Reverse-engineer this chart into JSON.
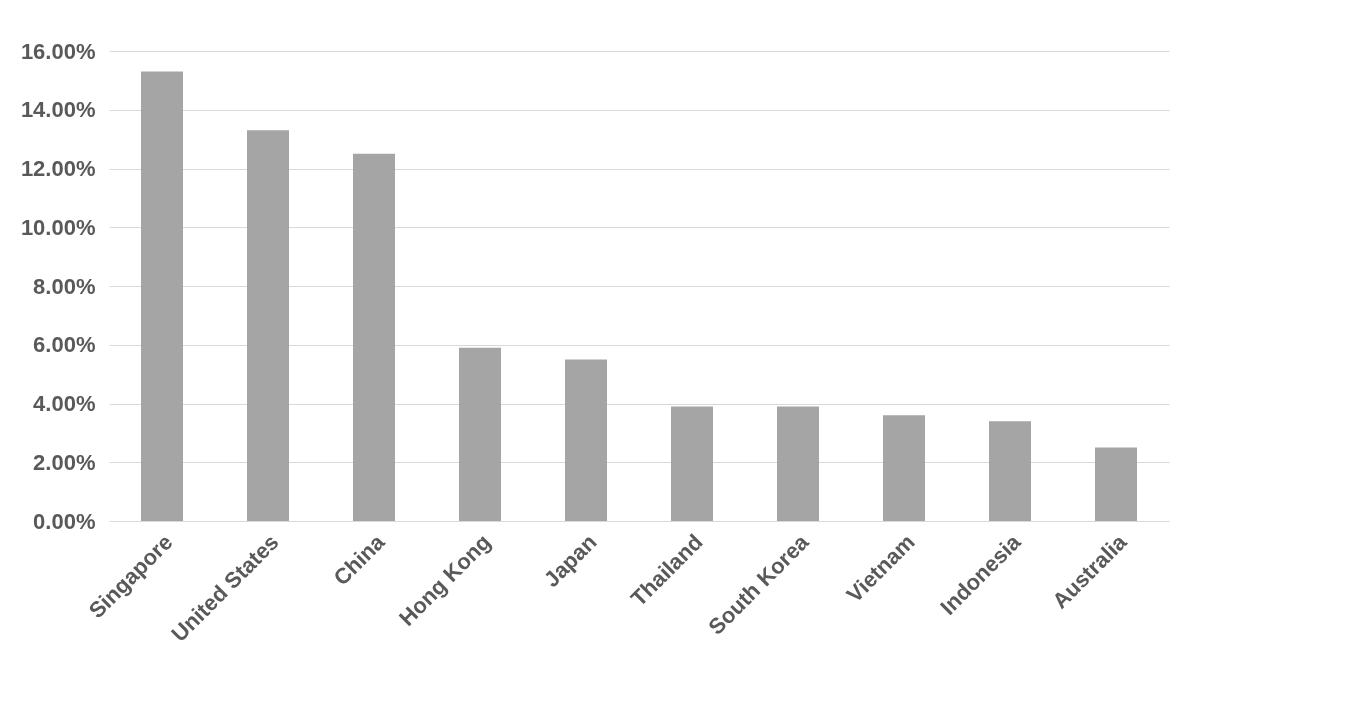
{
  "chart_data": {
    "type": "bar",
    "categories": [
      "Singapore",
      "United States",
      "China",
      "Hong Kong",
      "Japan",
      "Thailand",
      "South Korea",
      "Vietnam",
      "Indonesia",
      "Australia"
    ],
    "values": [
      15.3,
      13.3,
      12.5,
      5.9,
      5.5,
      3.9,
      3.9,
      3.6,
      3.4,
      2.5
    ],
    "color": "#a5a5a5",
    "ylim": [
      0,
      16
    ],
    "yticks": [
      {
        "value": 0,
        "label": "0.00%"
      },
      {
        "value": 2,
        "label": "2.00%"
      },
      {
        "value": 4,
        "label": "4.00%"
      },
      {
        "value": 6,
        "label": "6.00%"
      },
      {
        "value": 8,
        "label": "8.00%"
      },
      {
        "value": 10,
        "label": "10.00%"
      },
      {
        "value": 12,
        "label": "12.00%"
      },
      {
        "value": 14,
        "label": "14.00%"
      },
      {
        "value": 16,
        "label": "16.00%"
      }
    ],
    "grid": "y"
  }
}
